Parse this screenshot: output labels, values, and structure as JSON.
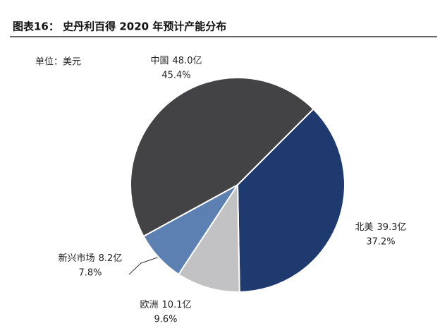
{
  "chart_data": {
    "type": "pie",
    "title": "图表16： 史丹利百得 2020 年预计产能分布",
    "subtitle": "单位：美元",
    "categories": [
      "北美",
      "欧洲",
      "新兴市场",
      "中国"
    ],
    "values": [
      39.3,
      10.1,
      8.2,
      48.0
    ],
    "value_labels": [
      "39.3亿",
      "10.1亿",
      "8.2亿",
      "48.0亿"
    ],
    "percents": [
      37.2,
      9.6,
      7.8,
      45.4
    ],
    "percent_labels": [
      "37.2%",
      "9.6%",
      "7.8%",
      "45.4%"
    ],
    "colors": [
      "#1e3a6f",
      "#c2c2c4",
      "#5c80b2",
      "#434345"
    ]
  }
}
